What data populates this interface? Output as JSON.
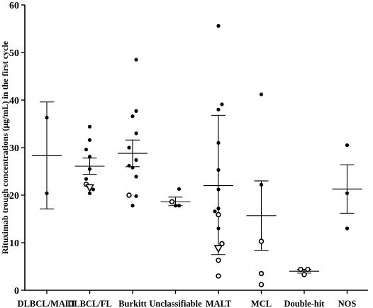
{
  "chart_data": {
    "type": "scatter",
    "ylabel": "Rituximab trough concentrations (μg/mL) in the first cycle",
    "xlabel": "",
    "ylim": [
      0,
      60
    ],
    "yticks": [
      0,
      10,
      20,
      30,
      40,
      50,
      60
    ],
    "grid": false,
    "legend": "none",
    "categories": [
      "DLBCL/MALT",
      "DLBCL/FL",
      "Burkitt",
      "Unclassifiable",
      "MALT",
      "MCL",
      "Double-hit",
      "NOS"
    ],
    "groups": [
      {
        "category": "DLBCL/MALT",
        "mean": 28.3,
        "err_low": 17.1,
        "err_high": 39.6,
        "points": [
          {
            "dx": 0,
            "y": 36.3,
            "marker": "filled-circle"
          },
          {
            "dx": 0,
            "y": 20.4,
            "marker": "filled-circle"
          }
        ]
      },
      {
        "category": "DLBCL/FL",
        "mean": 26.1,
        "err_low": 24.4,
        "err_high": 27.8,
        "points": [
          {
            "dx": 0,
            "y": 34.4,
            "marker": "filled-circle"
          },
          {
            "dx": 0,
            "y": 31.6,
            "marker": "filled-circle"
          },
          {
            "dx": -1,
            "y": 29.6,
            "marker": "filled-circle"
          },
          {
            "dx": 0,
            "y": 28.1,
            "marker": "filled-circle"
          },
          {
            "dx": 0,
            "y": 25.5,
            "marker": "filled-circle"
          },
          {
            "dx": -1,
            "y": 23.4,
            "marker": "filled-circle"
          },
          {
            "dx": -1,
            "y": 22.3,
            "marker": "open-circle"
          },
          {
            "dx": 0,
            "y": 21.6,
            "marker": "open-triangle"
          },
          {
            "dx": 1,
            "y": 21.2,
            "marker": "filled-circle"
          },
          {
            "dx": 0,
            "y": 20.4,
            "marker": "filled-circle"
          }
        ]
      },
      {
        "category": "Burkitt",
        "mean": 28.8,
        "err_low": 26.0,
        "err_high": 31.6,
        "points": [
          {
            "dx": 1,
            "y": 48.5,
            "marker": "filled-circle"
          },
          {
            "dx": 1,
            "y": 37.7,
            "marker": "filled-circle"
          },
          {
            "dx": 0,
            "y": 36.6,
            "marker": "filled-circle"
          },
          {
            "dx": 1,
            "y": 33.0,
            "marker": "filled-circle"
          },
          {
            "dx": -1,
            "y": 30.0,
            "marker": "filled-circle"
          },
          {
            "dx": 1,
            "y": 27.4,
            "marker": "filled-circle"
          },
          {
            "dx": -1,
            "y": 26.2,
            "marker": "filled-circle"
          },
          {
            "dx": 0,
            "y": 25.8,
            "marker": "filled-circle"
          },
          {
            "dx": 1,
            "y": 23.9,
            "marker": "filled-circle"
          },
          {
            "dx": -1,
            "y": 20.0,
            "marker": "open-circle"
          },
          {
            "dx": 1,
            "y": 19.8,
            "marker": "filled-circle"
          },
          {
            "dx": 0,
            "y": 17.8,
            "marker": "filled-circle"
          }
        ]
      },
      {
        "category": "Unclassifiable",
        "mean": 18.6,
        "err_low": 17.8,
        "err_high": 19.6,
        "points": [
          {
            "dx": 1,
            "y": 21.3,
            "marker": "filled-circle"
          },
          {
            "dx": -1,
            "y": 18.6,
            "marker": "open-circle"
          },
          {
            "dx": 0,
            "y": 17.8,
            "marker": "filled-circle"
          },
          {
            "dx": 1,
            "y": 17.8,
            "marker": "filled-circle"
          }
        ]
      },
      {
        "category": "MALT",
        "mean": 22.0,
        "err_low": 7.5,
        "err_high": 36.8,
        "points": [
          {
            "dx": 0,
            "y": 55.6,
            "marker": "filled-circle"
          },
          {
            "dx": 1,
            "y": 39.1,
            "marker": "filled-circle"
          },
          {
            "dx": 0,
            "y": 38.0,
            "marker": "filled-circle"
          },
          {
            "dx": 0,
            "y": 31.0,
            "marker": "filled-circle"
          },
          {
            "dx": 0,
            "y": 25.3,
            "marker": "filled-circle"
          },
          {
            "dx": 0,
            "y": 21.2,
            "marker": "filled-circle"
          },
          {
            "dx": -1,
            "y": 16.6,
            "marker": "filled-circle"
          },
          {
            "dx": 0,
            "y": 17.2,
            "marker": "filled-circle"
          },
          {
            "dx": 0,
            "y": 15.9,
            "marker": "open-circle"
          },
          {
            "dx": 0,
            "y": 13.0,
            "marker": "filled-circle"
          },
          {
            "dx": 1,
            "y": 9.8,
            "marker": "open-circle"
          },
          {
            "dx": 0,
            "y": 8.8,
            "marker": "open-triangle"
          },
          {
            "dx": 0,
            "y": 6.3,
            "marker": "open-circle"
          },
          {
            "dx": 0,
            "y": 3.0,
            "marker": "open-circle"
          }
        ]
      },
      {
        "category": "MCL",
        "mean": 15.7,
        "err_low": 8.4,
        "err_high": 23.0,
        "points": [
          {
            "dx": 0,
            "y": 41.2,
            "marker": "filled-circle"
          },
          {
            "dx": 0,
            "y": 22.2,
            "marker": "filled-circle"
          },
          {
            "dx": 0,
            "y": 10.3,
            "marker": "open-circle"
          },
          {
            "dx": 0,
            "y": 3.5,
            "marker": "open-circle"
          },
          {
            "dx": 0,
            "y": 1.2,
            "marker": "open-circle"
          }
        ]
      },
      {
        "category": "Double-hit",
        "mean": 4.0,
        "err_low": 3.6,
        "err_high": 4.4,
        "points": [
          {
            "dx": -1,
            "y": 4.4,
            "marker": "open-circle"
          },
          {
            "dx": 1,
            "y": 4.4,
            "marker": "open-circle"
          },
          {
            "dx": 0,
            "y": 3.3,
            "marker": "open-circle"
          }
        ]
      },
      {
        "category": "NOS",
        "mean": 21.3,
        "err_low": 16.2,
        "err_high": 26.4,
        "points": [
          {
            "dx": 0,
            "y": 30.5,
            "marker": "filled-circle"
          },
          {
            "dx": 0,
            "y": 20.4,
            "marker": "filled-circle"
          },
          {
            "dx": 0,
            "y": 13.0,
            "marker": "filled-circle"
          }
        ]
      }
    ]
  }
}
